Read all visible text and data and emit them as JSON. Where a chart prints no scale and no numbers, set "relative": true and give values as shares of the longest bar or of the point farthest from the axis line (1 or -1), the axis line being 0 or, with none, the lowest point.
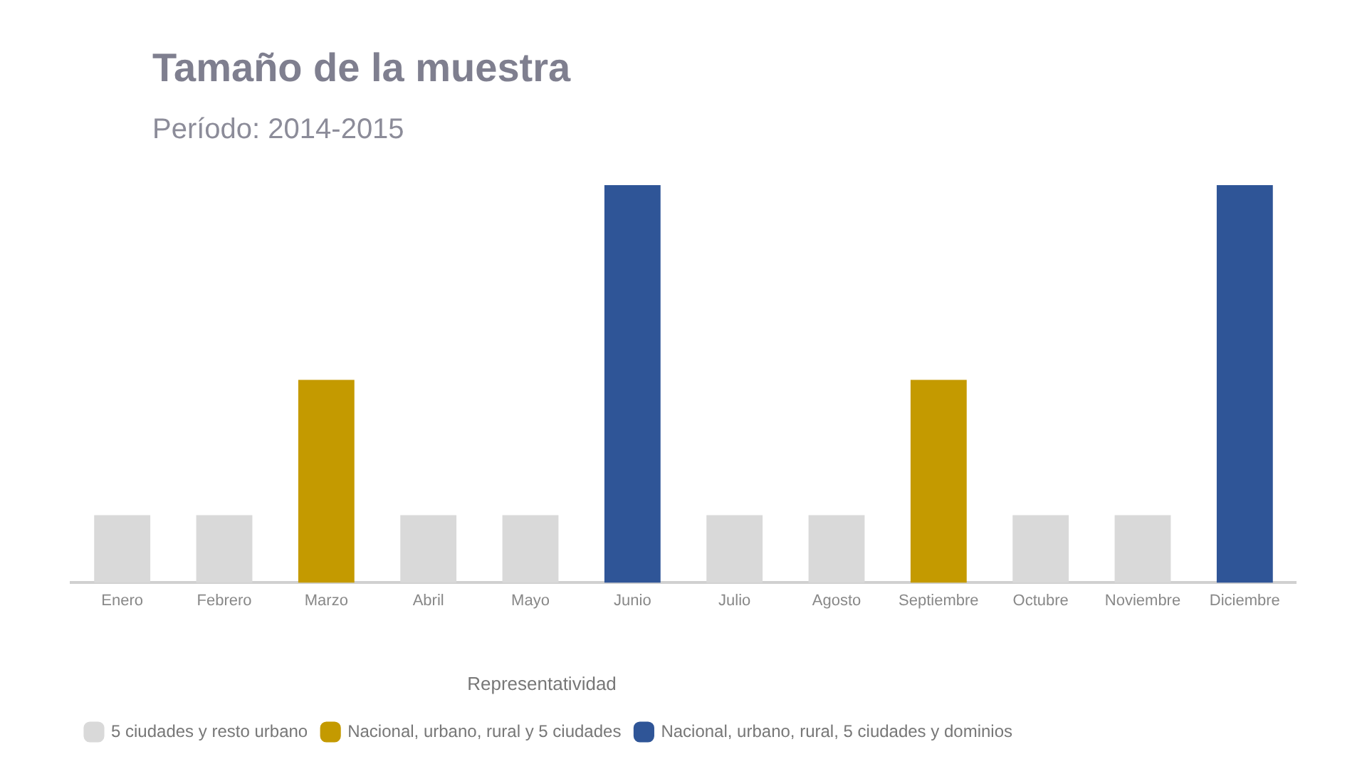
{
  "chart_data": {
    "type": "bar",
    "title": "Tamaño de la muestra",
    "subtitle": "Período: 2014-2015",
    "relative": true,
    "legend": "bottom left",
    "legend_title": "Representatividad",
    "grid": false,
    "categories": [
      "Enero",
      "Febrero",
      "Marzo",
      "Abril",
      "Mayo",
      "Junio",
      "Julio",
      "Agosto",
      "Septiembre",
      "Octubre",
      "Noviembre",
      "Diciembre"
    ],
    "series": [
      {
        "name": "5 ciudades y resto urbano",
        "color": "#d9d9d9",
        "values": [
          0.17,
          0.17,
          null,
          0.17,
          0.17,
          null,
          0.17,
          0.17,
          null,
          0.17,
          0.17,
          null
        ]
      },
      {
        "name": "Nacional, urbano, rural y 5 ciudades",
        "color": "#c49a00",
        "values": [
          null,
          null,
          0.51,
          null,
          null,
          null,
          null,
          null,
          0.51,
          null,
          null,
          null
        ]
      },
      {
        "name": "Nacional, urbano, rural, 5 ciudades y dominios",
        "color": "#2f5597",
        "values": [
          null,
          null,
          null,
          null,
          null,
          1,
          null,
          null,
          null,
          null,
          null,
          1
        ]
      }
    ]
  }
}
